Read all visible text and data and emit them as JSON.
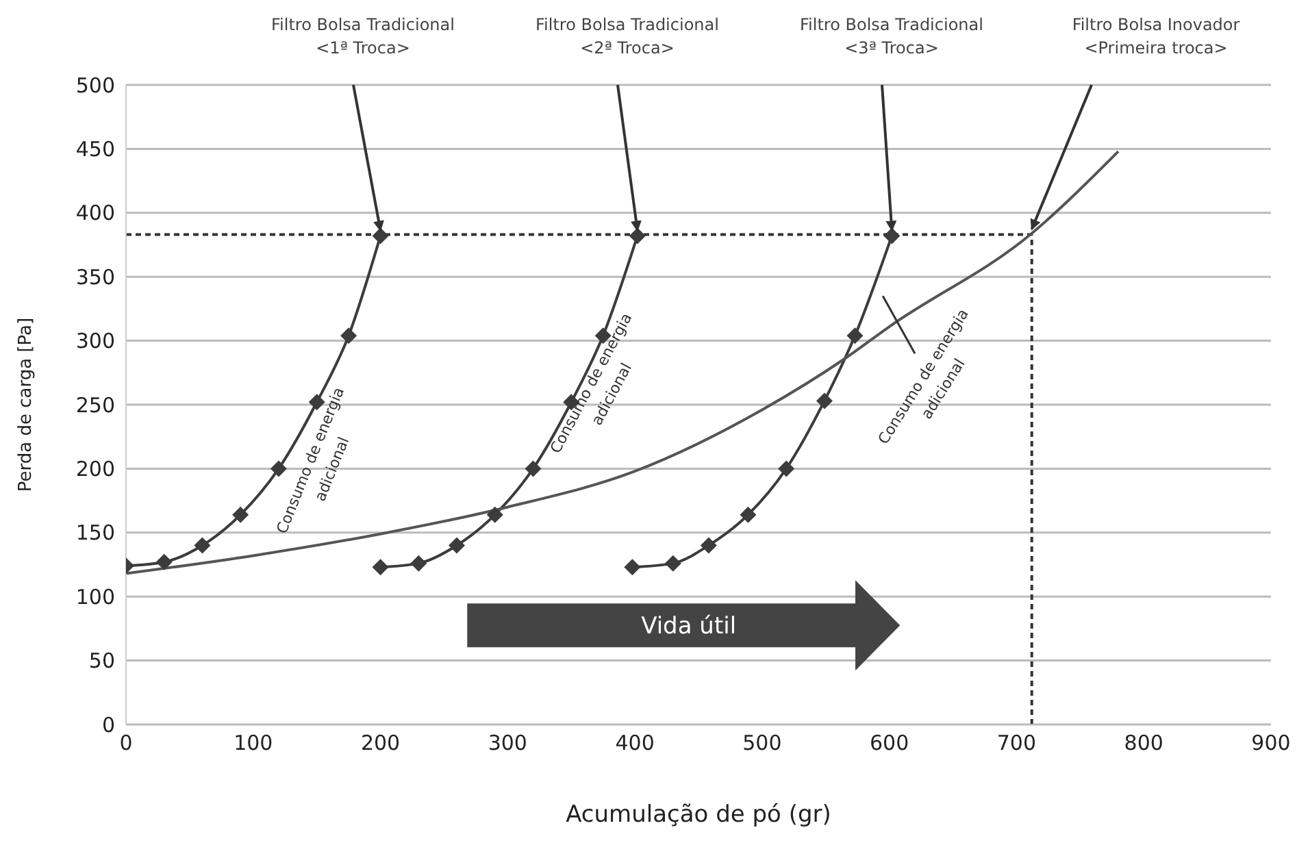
{
  "chart_data": {
    "type": "line",
    "xlabel": "Acumulação de pó (gr)",
    "ylabel": "Perda de carga [Pa]",
    "xlim": [
      0,
      900
    ],
    "xticks": [
      0,
      100,
      200,
      300,
      400,
      500,
      600,
      700,
      800,
      900
    ],
    "ylim": [
      0,
      500
    ],
    "yticks": [
      0,
      50,
      100,
      150,
      200,
      250,
      300,
      350,
      400,
      450,
      500
    ],
    "grid": "y",
    "series": [
      {
        "color": "#3c3c3c",
        "marker": "diamond",
        "x": [
          0,
          30,
          60,
          90,
          120,
          150,
          175,
          200
        ],
        "values": [
          124,
          127,
          140,
          164,
          200,
          252,
          304,
          382
        ]
      },
      {
        "color": "#3c3c3c",
        "marker": "diamond",
        "x": [
          200,
          230,
          260,
          290,
          320,
          350,
          375,
          402
        ],
        "values": [
          123,
          126,
          140,
          164,
          200,
          252,
          304,
          382
        ]
      },
      {
        "color": "#3c3c3c",
        "marker": "diamond",
        "x": [
          398,
          430,
          458,
          489,
          519,
          549,
          573,
          602
        ],
        "values": [
          123,
          126,
          140,
          164,
          200,
          253,
          304,
          382
        ]
      },
      {
        "color": "#555555",
        "marker": "none",
        "x": [
          0,
          100,
          200,
          300,
          400,
          500,
          565,
          600,
          712,
          780
        ],
        "values": [
          118,
          132,
          149,
          170,
          198,
          246,
          286,
          311,
          384,
          448
        ]
      }
    ],
    "ref_lines": [
      {
        "axis": "y",
        "value": 383,
        "line_style": "dashed",
        "color": "#333333"
      },
      {
        "axis": "x",
        "value": 712,
        "line_style": "dashed",
        "color": "#333333"
      }
    ],
    "annotations": [
      "Filtro Bolsa Tradicional\n<1ª Troca>",
      "Filtro Bolsa Tradicional\n<2ª Troca>",
      "Filtro Bolsa Tradicional\n<3ª Troca>",
      "Filtro Bolsa Inovador\n<Primeira troca>",
      "Consumo de energia\nadicional",
      "Consumo de energia\nadicional",
      "Consumo de energia\nadicional",
      "Vida útil"
    ]
  }
}
